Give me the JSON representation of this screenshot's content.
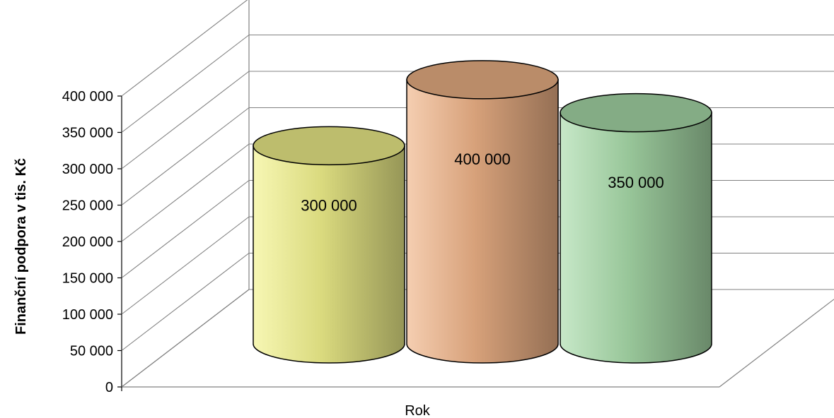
{
  "chart_data": {
    "type": "bar",
    "style": "3d-cylinder",
    "categories": [
      ""
    ],
    "series": [
      {
        "values": [
          300000
        ],
        "color": "#f2f28c",
        "data_label": "300 000"
      },
      {
        "values": [
          400000
        ],
        "color": "#efb387",
        "data_label": "400 000"
      },
      {
        "values": [
          350000
        ],
        "color": "#a9dcaa",
        "data_label": "350 000"
      }
    ],
    "xlabel": "Rok",
    "ylabel": "Finanční podpora v tis. Kč",
    "ylim": [
      0,
      400000
    ],
    "yticks": [
      {
        "value": 0,
        "label": "0"
      },
      {
        "value": 50000,
        "label": "50 000"
      },
      {
        "value": 100000,
        "label": "100 000"
      },
      {
        "value": 150000,
        "label": "150 000"
      },
      {
        "value": 200000,
        "label": "200 000"
      },
      {
        "value": 250000,
        "label": "250 000"
      },
      {
        "value": 300000,
        "label": "300 000"
      },
      {
        "value": 350000,
        "label": "350 000"
      },
      {
        "value": 400000,
        "label": "400 000"
      }
    ],
    "grid": true,
    "legend": "none"
  }
}
